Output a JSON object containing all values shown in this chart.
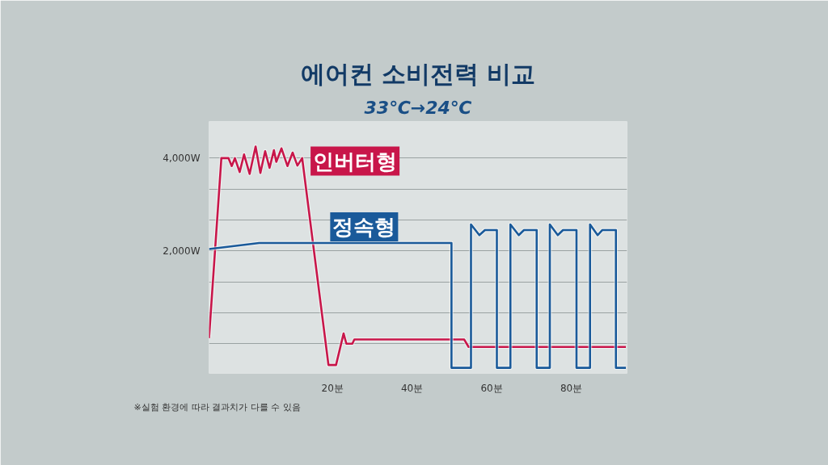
{
  "chart_data": {
    "type": "line",
    "title": "에어컨 소비전력 비교",
    "subtitle": "33℃→24℃",
    "annotations": [
      "※실험 환경에 따라 결과치가 다를 수 있음"
    ],
    "xlim": [
      -11,
      94
    ],
    "ylim": [
      -640,
      4790
    ],
    "xticks": [
      {
        "value": 20,
        "label": "20분"
      },
      {
        "value": 40,
        "label": "40분"
      },
      {
        "value": 60,
        "label": "60분"
      },
      {
        "value": 80,
        "label": "80분"
      }
    ],
    "yticks": [
      {
        "value": 0,
        "label": null
      },
      {
        "value": 667,
        "label": null
      },
      {
        "value": 1333,
        "label": null
      },
      {
        "value": 2000,
        "label": "2,000W"
      },
      {
        "value": 2667,
        "label": null
      },
      {
        "value": 3333,
        "label": null
      },
      {
        "value": 4000,
        "label": "4,000W"
      }
    ],
    "grid": "y",
    "series": [
      {
        "name": "인버터형",
        "color": "#c8164a",
        "x": [
          -11,
          -7.9,
          -6.1,
          -5.3,
          -4.5,
          -3.3,
          -2.2,
          -0.8,
          0.7,
          1.9,
          3.1,
          4.2,
          5.3,
          5.9,
          7.2,
          8.7,
          10.0,
          11.2,
          12.4,
          19.0,
          20.9,
          22.8,
          23.5,
          25.0,
          25.5,
          53.1,
          54.2,
          93.7
        ],
        "values": [
          120,
          4000,
          4000,
          3830,
          4000,
          3700,
          4080,
          3660,
          4250,
          3680,
          4150,
          3790,
          4170,
          3920,
          4210,
          3830,
          4120,
          3840,
          4000,
          -460,
          -460,
          220,
          0,
          0,
          90,
          90,
          -70,
          -70
        ]
      },
      {
        "name": "정속형",
        "color": "#1a5a9a",
        "x": [
          -11,
          1.6,
          49.9,
          49.9,
          54.8,
          54.8,
          56.9,
          58.3,
          61.3,
          61.3,
          64.7,
          64.7,
          66.8,
          68.1,
          71.3,
          71.3,
          74.6,
          74.6,
          76.6,
          77.9,
          81.3,
          81.3,
          84.7,
          84.7,
          86.6,
          87.8,
          91.2,
          91.2,
          93.7
        ],
        "values": [
          2040,
          2170,
          2170,
          -520,
          -520,
          2570,
          2340,
          2450,
          2450,
          -520,
          -520,
          2570,
          2340,
          2450,
          2450,
          -520,
          -520,
          2570,
          2340,
          2450,
          2450,
          -520,
          -520,
          2570,
          2340,
          2450,
          2450,
          -520,
          -520
        ]
      }
    ]
  }
}
